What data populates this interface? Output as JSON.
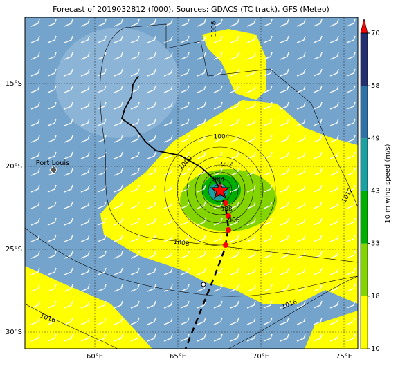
{
  "title": "Forecast of 2019032812 (f000), Sources: GDACS (TC track), GFS (Meteo)",
  "map": {
    "lat_labels": [
      "15°S",
      "20°S",
      "25°S",
      "30°S"
    ],
    "lon_labels": [
      "60°E",
      "65°E",
      "70°E",
      "75°E"
    ],
    "place": "Port Louis",
    "contour_labels": [
      "1008",
      "1004",
      "1000",
      "992",
      "984",
      "988",
      "996",
      "1008",
      "1012",
      "1016",
      "1016"
    ]
  },
  "colorbar": {
    "label": "10 m wind speed (m/s)",
    "ticks": [
      10,
      18,
      33,
      43,
      49,
      58,
      70
    ],
    "colors": [
      "#ffff00",
      "#84d400",
      "#00b000",
      "#1aa0a0",
      "#2c72a6",
      "#232f6e"
    ],
    "extend_color": "#ff0000"
  }
}
